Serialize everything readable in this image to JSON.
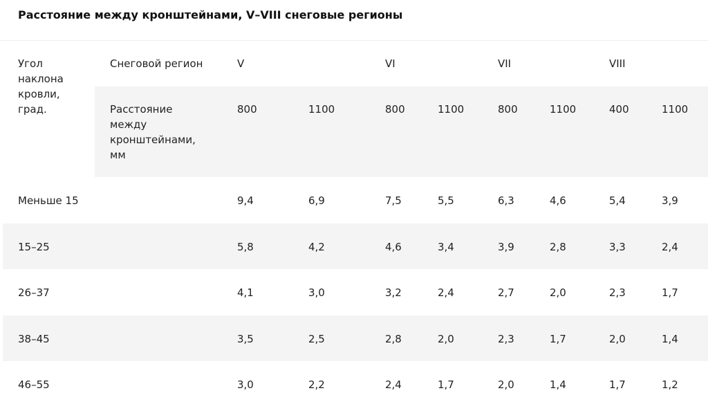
{
  "title": "Расстояние между кронштейнами, V–VIII снеговые регионы",
  "table": {
    "header": {
      "angle": "Угол наклона кровли, град.",
      "region_label": "Снеговой регион",
      "regions": [
        "V",
        "VI",
        "VII",
        "VIII"
      ],
      "distance_label": "Расстояние между кронштейнами, мм",
      "distances": [
        "800",
        "1100",
        "800",
        "1100",
        "800",
        "1100",
        "400",
        "1100"
      ]
    },
    "rows": [
      [
        "Меньше 15",
        "9,4",
        "6,9",
        "7,5",
        "5,5",
        "6,3",
        "4,6",
        "5,4",
        "3,9"
      ],
      [
        "15–25",
        "5,8",
        "4,2",
        "4,6",
        "3,4",
        "3,9",
        "2,8",
        "3,3",
        "2,4"
      ],
      [
        "26–37",
        "4,1",
        "3,0",
        "3,2",
        "2,4",
        "2,7",
        "2,0",
        "2,3",
        "1,7"
      ],
      [
        "38–45",
        "3,5",
        "2,5",
        "2,8",
        "2,0",
        "2,3",
        "1,7",
        "2,0",
        "1,4"
      ],
      [
        "46–55",
        "3,0",
        "2,2",
        "2,4",
        "1,7",
        "2,0",
        "1,4",
        "1,7",
        "1,2"
      ]
    ]
  }
}
